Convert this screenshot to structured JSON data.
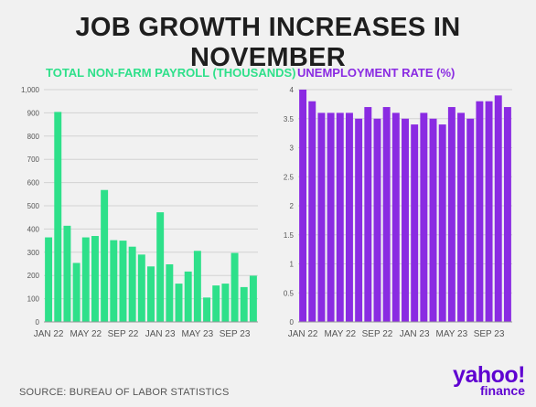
{
  "headline": "JOB GROWTH INCREASES IN NOVEMBER",
  "source": "SOURCE: BUREAU OF LABOR STATISTICS",
  "logo": {
    "main": "yahoo!",
    "sub": "finance"
  },
  "colors": {
    "payroll": "#2ee08a",
    "unemployment": "#8a2be2",
    "text": "#1e1e1e",
    "grid": "#d2d2d2"
  },
  "chart_data": [
    {
      "type": "bar",
      "title": "TOTAL NON-FARM PAYROLL (THOUSANDS)",
      "xlabel": "",
      "ylabel": "",
      "ylim": [
        0,
        1000
      ],
      "yticks": [
        0,
        100,
        200,
        300,
        400,
        500,
        600,
        700,
        800,
        900,
        1000
      ],
      "ytick_labels": [
        "0",
        "100",
        "200",
        "300",
        "400",
        "500",
        "600",
        "700",
        "800",
        "900",
        "1,000"
      ],
      "xtick_labels": [
        {
          "index": 0,
          "label": "JAN 22"
        },
        {
          "index": 4,
          "label": "MAY 22"
        },
        {
          "index": 8,
          "label": "SEP 22"
        },
        {
          "index": 12,
          "label": "JAN 23"
        },
        {
          "index": 16,
          "label": "MAY 23"
        },
        {
          "index": 20,
          "label": "SEP 23"
        }
      ],
      "values": [
        364,
        904,
        414,
        254,
        364,
        370,
        568,
        352,
        350,
        324,
        290,
        239,
        472,
        248,
        165,
        217,
        306,
        105,
        157,
        165,
        297,
        150,
        199
      ],
      "grid": true,
      "color": "#2ee08a"
    },
    {
      "type": "bar",
      "title": "UNEMPLOYMENT RATE (%)",
      "xlabel": "",
      "ylabel": "",
      "ylim": [
        0,
        4
      ],
      "yticks": [
        0,
        0.5,
        1,
        1.5,
        2,
        2.5,
        3,
        3.5,
        4
      ],
      "ytick_labels": [
        "0",
        "0.5",
        "1",
        "1.5",
        "2",
        "2.5",
        "3",
        "3.5",
        "4"
      ],
      "xtick_labels": [
        {
          "index": 0,
          "label": "JAN 22"
        },
        {
          "index": 4,
          "label": "MAY 22"
        },
        {
          "index": 8,
          "label": "SEP 22"
        },
        {
          "index": 12,
          "label": "JAN 23"
        },
        {
          "index": 16,
          "label": "MAY 23"
        },
        {
          "index": 20,
          "label": "SEP 23"
        }
      ],
      "values": [
        4.0,
        3.8,
        3.6,
        3.6,
        3.6,
        3.6,
        3.5,
        3.7,
        3.5,
        3.7,
        3.6,
        3.5,
        3.4,
        3.6,
        3.5,
        3.4,
        3.7,
        3.6,
        3.5,
        3.8,
        3.8,
        3.9,
        3.7
      ],
      "grid": true,
      "color": "#8a2be2"
    }
  ]
}
